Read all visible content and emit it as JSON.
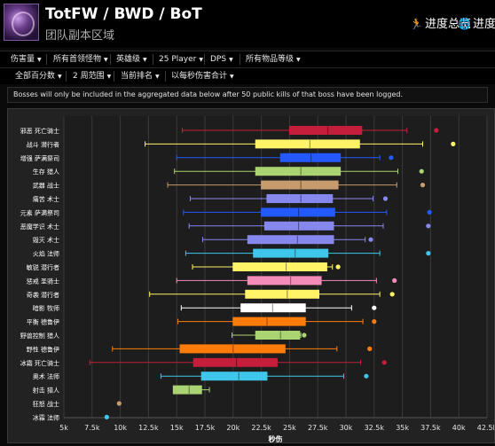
{
  "header": {
    "title": "TotFW / BWD / BoT",
    "subtitle": "团队副本区域",
    "links": [
      {
        "icon": "running-icon",
        "glyph": "🏃",
        "label": "进度总览"
      },
      {
        "icon": "globe-icon",
        "glyph": "🌐",
        "label": "进度"
      }
    ]
  },
  "menu1": [
    {
      "label": "伤害量"
    },
    {
      "label": "所有首领怪物"
    },
    {
      "label": "英雄级"
    },
    {
      "label": "25 Player"
    },
    {
      "label": "DPS"
    },
    {
      "label": "所有物品等级"
    }
  ],
  "menu2": [
    {
      "label": "全部百分数"
    },
    {
      "label": "2 周范围"
    },
    {
      "label": "当前排名"
    },
    {
      "label": "以每秒伤害合计"
    }
  ],
  "notice": "Bosses will only be included in the aggregated data below after 50 public kills of that boss have been logged.",
  "colors": {
    "accent": "#ffffff",
    "background": "#0a0a0a",
    "chart_bg": "#222222"
  },
  "chart_data": {
    "type": "box",
    "title": "",
    "xlabel": "秒伤",
    "ylabel": "",
    "xlim": [
      5000,
      42500
    ],
    "xticks": [
      5000,
      7500,
      10000,
      12500,
      15000,
      17500,
      20000,
      22500,
      25000,
      27500,
      30000,
      32500,
      35000,
      37500,
      40000,
      42500
    ],
    "xtick_labels": [
      "5k",
      "7.5k",
      "10k",
      "12.5k",
      "15k",
      "17.5k",
      "20k",
      "22.5k",
      "25k",
      "27.5k",
      "30k",
      "32.5k",
      "35k",
      "37.5k",
      "40k",
      "42.5k"
    ],
    "grid": true,
    "series": [
      {
        "name": "邪恶 死亡骑士",
        "color": "#c41e3a",
        "min": 15500,
        "q1": 25000,
        "median": 28400,
        "q3": 31400,
        "max": 35400,
        "outlier": 38000
      },
      {
        "name": "战斗 潜行者",
        "color": "#fff468",
        "min": 12200,
        "q1": 22000,
        "median": 26800,
        "q3": 31200,
        "max": 36800,
        "outlier": 39500
      },
      {
        "name": "增强 萨满祭司",
        "color": "#2459ff",
        "min": 15000,
        "q1": 24200,
        "median": 26900,
        "q3": 29500,
        "max": 33000,
        "outlier": 34000
      },
      {
        "name": "生存 猎人",
        "color": "#aad372",
        "min": 14800,
        "q1": 22000,
        "median": 26000,
        "q3": 29500,
        "max": 34600,
        "outlier": 36700
      },
      {
        "name": "武器 战士",
        "color": "#c69b6d",
        "min": 14200,
        "q1": 22500,
        "median": 26000,
        "q3": 29300,
        "max": 34500,
        "outlier": 36800
      },
      {
        "name": "痛苦 术士",
        "color": "#8788ee",
        "min": 16200,
        "q1": 23000,
        "median": 26000,
        "q3": 28800,
        "max": 32400,
        "outlier": 33500
      },
      {
        "name": "元素 萨满祭司",
        "color": "#2459ff",
        "min": 15600,
        "q1": 22500,
        "median": 25800,
        "q3": 29000,
        "max": 33600,
        "outlier": 37400
      },
      {
        "name": "恶魔学识 术士",
        "color": "#8788ee",
        "min": 16100,
        "q1": 22800,
        "median": 25800,
        "q3": 28900,
        "max": 33300,
        "outlier": 37300
      },
      {
        "name": "毁灭 术士",
        "color": "#8788ee",
        "min": 17300,
        "q1": 21300,
        "median": 25700,
        "q3": 28900,
        "max": 31700,
        "outlier": 32200
      },
      {
        "name": "火焰 法师",
        "color": "#3fc7eb",
        "min": 15800,
        "q1": 21800,
        "median": 25500,
        "q3": 28400,
        "max": 33000,
        "outlier": 37300
      },
      {
        "name": "敏锐 潜行者",
        "color": "#fff468",
        "min": 16400,
        "q1": 20000,
        "median": 24700,
        "q3": 28300,
        "max": 28800,
        "outlier": 29300
      },
      {
        "name": "惩戒 圣骑士",
        "color": "#f48cba",
        "min": 15000,
        "q1": 21300,
        "median": 25100,
        "q3": 27800,
        "max": 32700,
        "outlier": 34300
      },
      {
        "name": "奇袭 潜行者",
        "color": "#fff468",
        "min": 12600,
        "q1": 21100,
        "median": 24800,
        "q3": 27600,
        "max": 33000,
        "outlier": 34100
      },
      {
        "name": "暗影 牧师",
        "color": "#ffffff",
        "min": 15400,
        "q1": 20700,
        "median": 23500,
        "q3": 26400,
        "max": 30500,
        "outlier": 32500
      },
      {
        "name": "平衡 德鲁伊",
        "color": "#ff7c0a",
        "min": 15100,
        "q1": 20000,
        "median": 23000,
        "q3": 26400,
        "max": 31500,
        "outlier": 32500
      },
      {
        "name": "野兽控制 猎人",
        "color": "#aad372",
        "min": 19900,
        "q1": 22000,
        "median": 24200,
        "q3": 25900,
        "max": 26000,
        "outlier": 26300
      },
      {
        "name": "野性 德鲁伊",
        "color": "#ff7c0a",
        "min": 9300,
        "q1": 15300,
        "median": 20000,
        "q3": 24600,
        "max": 29200,
        "outlier": 32100
      },
      {
        "name": "冰霜 死亡骑士",
        "color": "#c41e3a",
        "min": 7300,
        "q1": 16500,
        "median": 20300,
        "q3": 23900,
        "max": 31300,
        "outlier": 33400
      },
      {
        "name": "奥术 法师",
        "color": "#3fc7eb",
        "min": 13600,
        "q1": 17200,
        "median": 20500,
        "q3": 23000,
        "max": 29800,
        "outlier": 31800
      },
      {
        "name": "射击 猎人",
        "color": "#aad372",
        "min": 14700,
        "q1": 14700,
        "median": 16100,
        "q3": 17200,
        "max": 17900,
        "outlier": null
      },
      {
        "name": "狂怒 战士",
        "color": "#c69b6d",
        "min": null,
        "q1": null,
        "median": null,
        "q3": null,
        "max": null,
        "outlier": 9900
      },
      {
        "name": "冰霜 法师",
        "color": "#3fc7eb",
        "min": null,
        "q1": null,
        "median": null,
        "q3": null,
        "max": null,
        "outlier": 8800
      }
    ]
  }
}
